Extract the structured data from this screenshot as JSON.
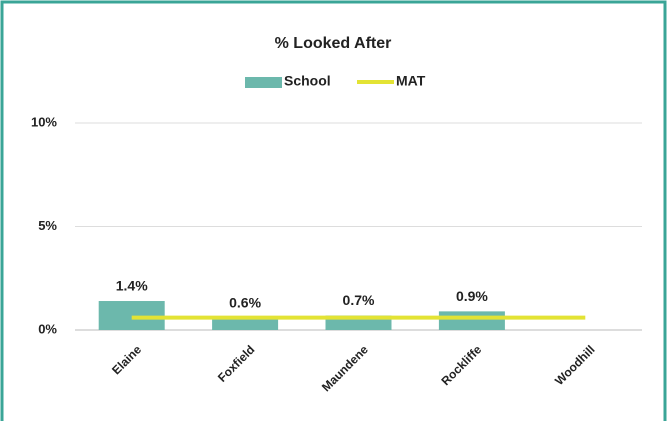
{
  "chart_data": {
    "type": "bar",
    "title": "% Looked After",
    "categories": [
      "Elaine",
      "Foxfield",
      "Maundene",
      "Rockliffe",
      "Woodhill"
    ],
    "series": [
      {
        "name": "School",
        "type": "bar",
        "color": "#6cb8ac",
        "values": [
          1.4,
          0.6,
          0.7,
          0.9,
          null
        ],
        "value_labels": [
          "1.4%",
          "0.6%",
          "0.7%",
          "0.9%",
          null
        ]
      },
      {
        "name": "MAT",
        "type": "line",
        "color": "#e3e334",
        "values": [
          0.6,
          0.6,
          0.6,
          0.6,
          0.6
        ]
      }
    ],
    "ylim": [
      0,
      10
    ],
    "yticks": [
      {
        "value": 0,
        "label": "0%"
      },
      {
        "value": 5,
        "label": "5%"
      },
      {
        "value": 10,
        "label": "10%"
      }
    ],
    "grid": true
  }
}
